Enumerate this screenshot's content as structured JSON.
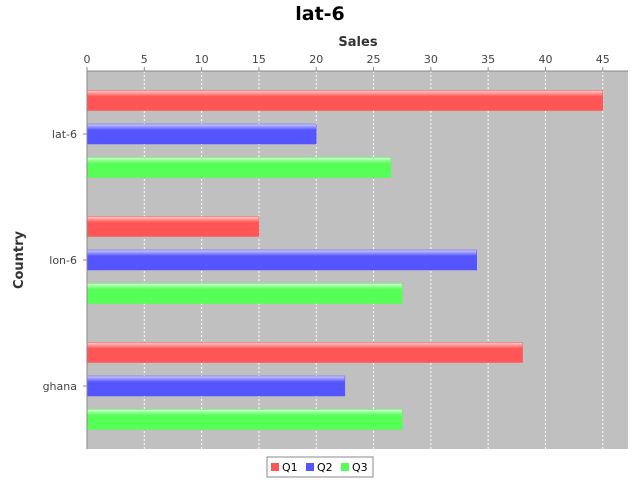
{
  "chart_data": {
    "type": "bar",
    "orientation": "horizontal",
    "title": "lat-6",
    "xlabel": "Sales",
    "ylabel": "Country",
    "categories": [
      "lat-6",
      "lon-6",
      "ghana"
    ],
    "series": [
      {
        "name": "Q1",
        "values": [
          45,
          15,
          38
        ],
        "color": "#ff5555"
      },
      {
        "name": "Q2",
        "values": [
          20,
          34,
          22.5
        ],
        "color": "#5555ff"
      },
      {
        "name": "Q3",
        "values": [
          26.5,
          27.5,
          27.5
        ],
        "color": "#55ff55"
      }
    ],
    "xlim": [
      0,
      47.2
    ],
    "xticks": [
      0,
      5,
      10,
      15,
      20,
      25,
      30,
      35,
      40,
      45
    ],
    "grid": true,
    "legend": "bottom",
    "plot_background": "#c0c0c0"
  }
}
